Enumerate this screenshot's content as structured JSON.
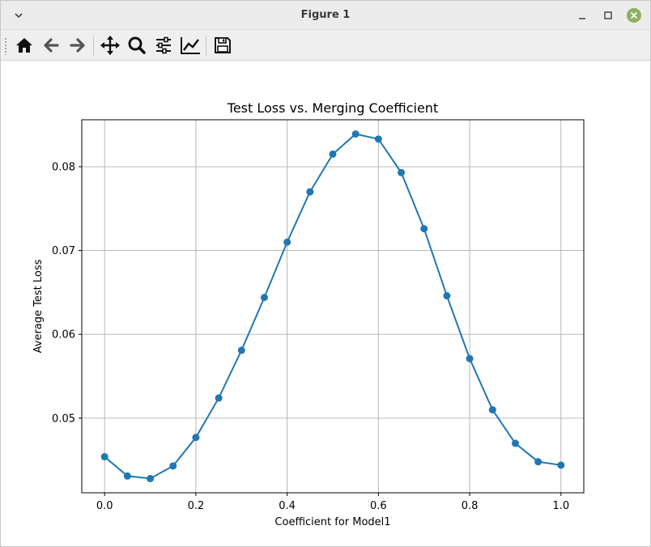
{
  "window": {
    "title": "Figure 1"
  },
  "toolbar": {
    "tools": [
      "home-icon",
      "back-arrow-icon",
      "forward-arrow-icon",
      "pan-icon",
      "zoom-icon",
      "subplots-icon",
      "customize-icon",
      "save-icon"
    ]
  },
  "colors": {
    "line": "#1f77b4",
    "grid": "#b0b0b0",
    "close_button": "#8bb15e"
  },
  "chart_data": {
    "type": "line",
    "title": "Test Loss vs. Merging Coefficient",
    "xlabel": "Coefficient for Model1",
    "ylabel": "Average Test Loss",
    "x": [
      0.0,
      0.05,
      0.1,
      0.15,
      0.2,
      0.25,
      0.3,
      0.35,
      0.4,
      0.45,
      0.5,
      0.55,
      0.6,
      0.65,
      0.7,
      0.75,
      0.8,
      0.85,
      0.9,
      0.95,
      1.0
    ],
    "series": [
      {
        "values": [
          0.0454,
          0.0431,
          0.0428,
          0.0443,
          0.0477,
          0.0524,
          0.0581,
          0.0644,
          0.071,
          0.077,
          0.0815,
          0.0839,
          0.0833,
          0.0793,
          0.0726,
          0.0646,
          0.0571,
          0.051,
          0.047,
          0.0448,
          0.0444
        ]
      }
    ],
    "xlim": [
      -0.05,
      1.05
    ],
    "ylim": [
      0.0411,
      0.0856
    ],
    "xticks": [
      0.0,
      0.2,
      0.4,
      0.6,
      0.8,
      1.0
    ],
    "xtick_labels": [
      "0.0",
      "0.2",
      "0.4",
      "0.6",
      "0.8",
      "1.0"
    ],
    "yticks": [
      0.05,
      0.06,
      0.07,
      0.08
    ],
    "ytick_labels": [
      "0.05",
      "0.06",
      "0.07",
      "0.08"
    ],
    "grid": true,
    "marker": "circle"
  }
}
